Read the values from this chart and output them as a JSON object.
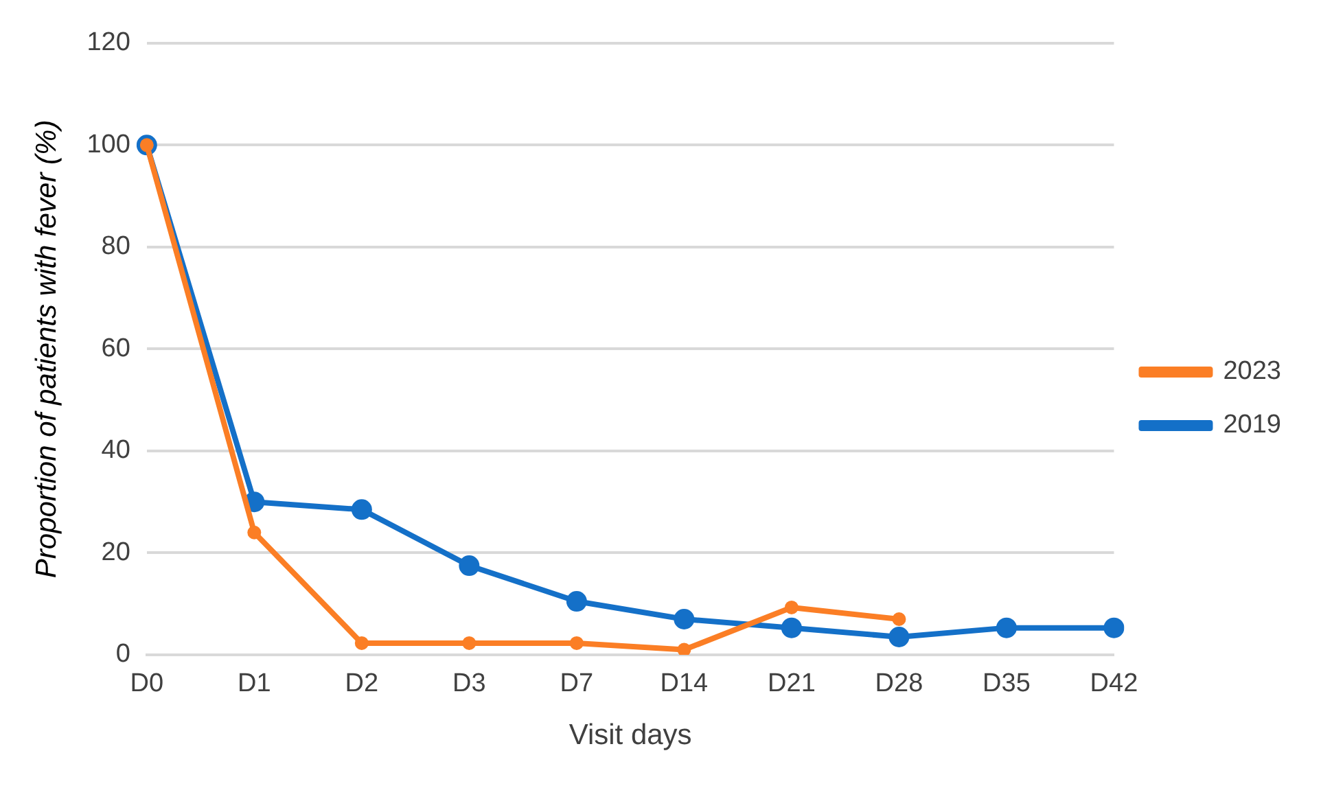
{
  "chart_data": {
    "type": "line",
    "xlabel": "Visit days",
    "ylabel": "Proportion of patients with fever (%)",
    "categories": [
      "D0",
      "D1",
      "D2",
      "D3",
      "D7",
      "D14",
      "D21",
      "D28",
      "D35",
      "D42"
    ],
    "series": [
      {
        "name": "2019",
        "color": "#1470c8",
        "values": [
          100,
          30,
          28.5,
          17.5,
          10.5,
          7,
          5.3,
          3.5,
          5.3,
          5.3
        ]
      },
      {
        "name": "2023",
        "color": "#fb7e25",
        "values": [
          100,
          24,
          2.3,
          2.3,
          2.3,
          1,
          9.3,
          7,
          null,
          null
        ]
      }
    ],
    "ylim": [
      0,
      120
    ],
    "yticks": [
      0,
      20,
      40,
      60,
      80,
      100,
      120
    ],
    "grid": "y",
    "legend": "right",
    "marker": "circle",
    "line_style": "solid"
  }
}
